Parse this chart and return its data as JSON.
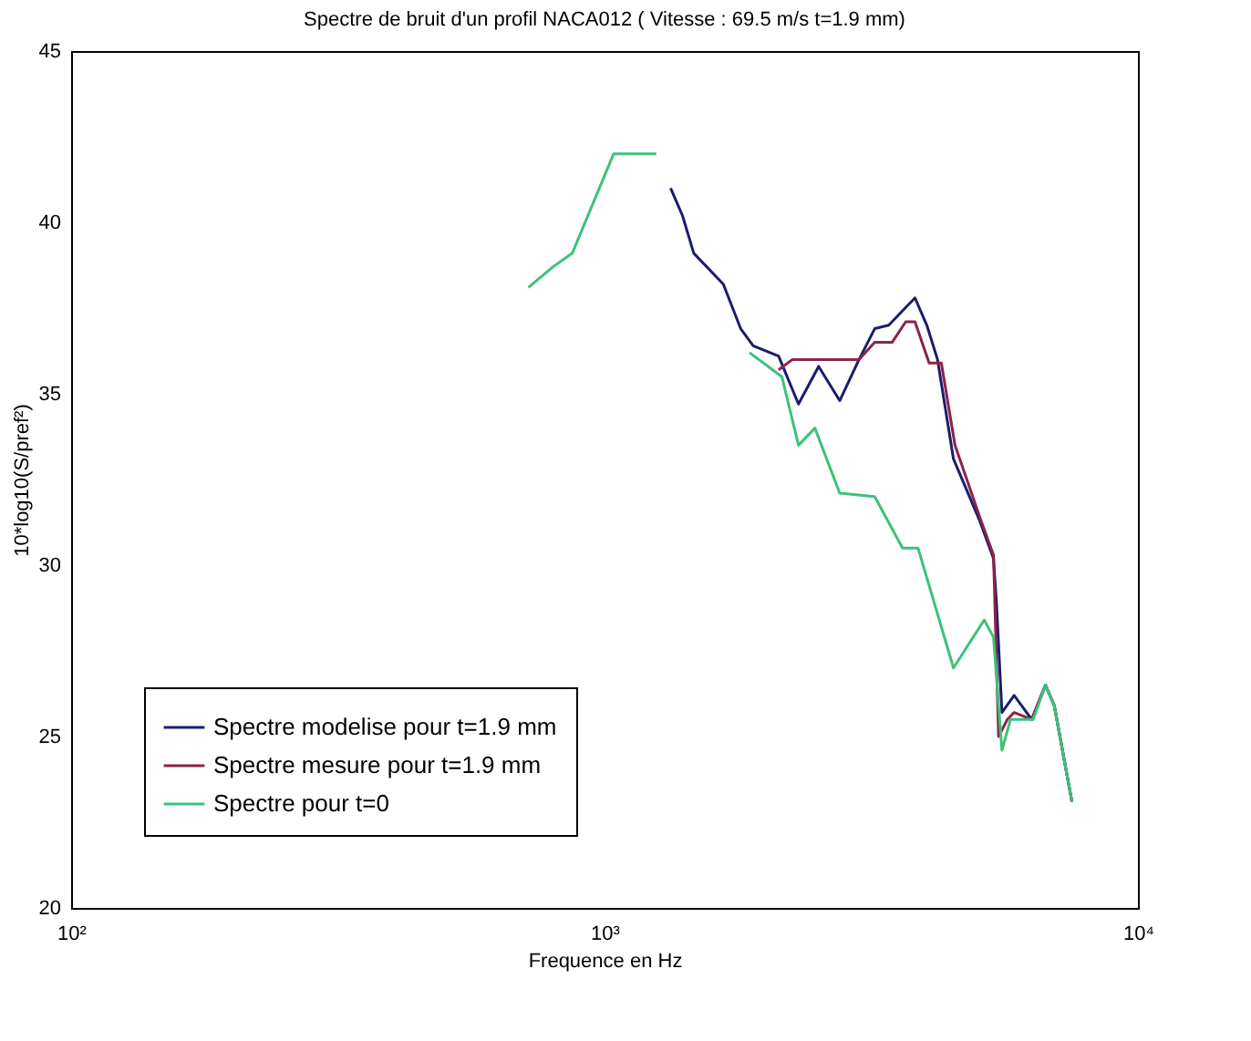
{
  "chart_data": {
    "type": "line",
    "title": "Spectre de bruit d'un profil NACA012 ( Vitesse : 69.5 m/s   t=1.9 mm)",
    "xlabel": "Frequence en Hz",
    "ylabel": "10*log10(S/pref²)",
    "log": "x",
    "xlim": [
      100,
      10000
    ],
    "xticks": [
      {
        "value": 100,
        "label": "10²"
      },
      {
        "value": 1000,
        "label": "10³"
      },
      {
        "value": 10000,
        "label": "10⁴"
      }
    ],
    "ylim": [
      20,
      45
    ],
    "yticks": [
      20,
      25,
      30,
      35,
      40,
      45
    ],
    "grid": false,
    "legend": "bottom left",
    "marker": "none",
    "line_style": "solid",
    "series": [
      {
        "name": "Spectre modelise pour t=1.9 mm",
        "color": "#1c1c6e",
        "x": [
          1330,
          1400,
          1470,
          1670,
          1800,
          1900,
          2120,
          2310,
          2520,
          2760,
          3000,
          3210,
          3410,
          3820,
          4020,
          4210,
          4510,
          5050,
          5360,
          5430,
          5560,
          5860,
          6320,
          6710,
          6970,
          7520
        ],
        "values": [
          41,
          40.2,
          39.1,
          38.2,
          36.9,
          36.4,
          36.1,
          34.7,
          35.8,
          34.8,
          36,
          36.9,
          37,
          37.8,
          37,
          36,
          33.1,
          31.3,
          30.2,
          28.9,
          25.7,
          26.2,
          25.5,
          26.5,
          25.9,
          23.1
        ]
      },
      {
        "name": "Spectre mesure pour t=1.9 mm",
        "color": "#8c2348",
        "x": [
          2120,
          2250,
          3000,
          3210,
          3460,
          3670,
          3820,
          4060,
          4280,
          4540,
          5080,
          5360,
          5480,
          5690,
          5860,
          6320,
          6710,
          6970,
          7520
        ],
        "values": [
          35.7,
          36,
          36,
          36.5,
          36.5,
          37.1,
          37.1,
          35.9,
          35.9,
          33.5,
          31.3,
          30.3,
          25,
          25.5,
          25.7,
          25.5,
          26.5,
          25.9,
          23.1
        ]
      },
      {
        "name": "Spectre pour t=0",
        "color": "#3cc27a",
        "x": [
          720,
          800,
          870,
          1040,
          1250,
          1330,
          1400,
          1470,
          1670,
          1800,
          1870,
          2150,
          2310,
          2480,
          2760,
          3210,
          3620,
          3870,
          4510,
          5150,
          5360,
          5560,
          5770,
          6360,
          6710,
          6970,
          7520
        ],
        "values": [
          38.1,
          38.7,
          39.1,
          42,
          42,
          null,
          null,
          null,
          null,
          null,
          36.2,
          35.5,
          33.5,
          34,
          32.1,
          32,
          30.5,
          30.5,
          27,
          28.4,
          27.9,
          24.6,
          25.5,
          25.5,
          26.5,
          25.9,
          23.1
        ]
      }
    ]
  }
}
